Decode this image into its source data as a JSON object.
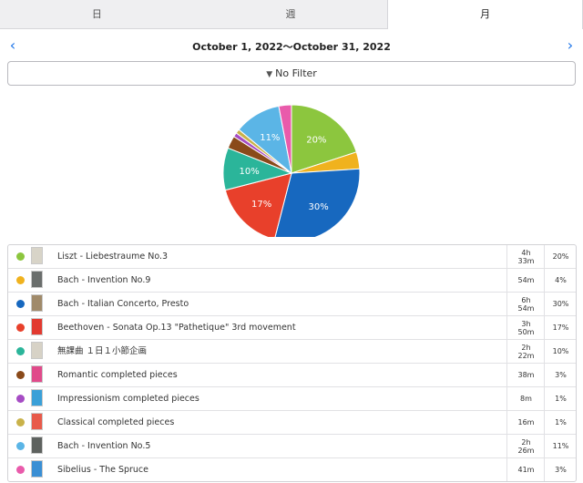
{
  "tabs": [
    {
      "label": "日",
      "active": false
    },
    {
      "label": "週",
      "active": false
    },
    {
      "label": "月",
      "active": true
    }
  ],
  "date_range": "October 1, 2022～October 31, 2022",
  "filter": {
    "label": "No Filter",
    "caret": "▼"
  },
  "nav": {
    "prev_icon": "‹",
    "next_icon": "›"
  },
  "chart_data": {
    "type": "pie",
    "start": "12 o'clock, clockwise",
    "slices": [
      {
        "name": "Liszt - Liebestraume No.3",
        "value": 20,
        "color": "#8cc63e",
        "label": "20%"
      },
      {
        "name": "Bach - Invention No.9",
        "value": 4,
        "color": "#f0b21e",
        "label": ""
      },
      {
        "name": "Bach - Italian Concerto, Presto",
        "value": 30,
        "color": "#1768bf",
        "label": "30%"
      },
      {
        "name": "Beethoven - Sonata Op.13 \"Pathetique\" 3rd movement",
        "value": 17,
        "color": "#e8402b",
        "label": "17%"
      },
      {
        "name": "無課曲 １日１小節企画",
        "value": 10,
        "color": "#2bb59a",
        "label": "10%"
      },
      {
        "name": "Romantic completed pieces",
        "value": 3,
        "color": "#8a4a1a",
        "label": ""
      },
      {
        "name": "Impressionism completed pieces",
        "value": 1,
        "color": "#a64cc4",
        "label": ""
      },
      {
        "name": "Classical completed pieces",
        "value": 1,
        "color": "#c9b24a",
        "label": ""
      },
      {
        "name": "Bach - Invention No.5",
        "value": 11,
        "color": "#5bb5e6",
        "label": "11%"
      },
      {
        "name": "Sibelius - The Spruce",
        "value": 3,
        "color": "#e95bab",
        "label": ""
      }
    ]
  },
  "rows": [
    {
      "title": "Liszt - Liebestraume No.3",
      "time": "4h\n33m",
      "pct": "20%",
      "color": "#8cc63e",
      "thumb": "#d8d4c8"
    },
    {
      "title": "Bach - Invention No.9",
      "time": "54m",
      "pct": "4%",
      "color": "#f0b21e",
      "thumb": "#6a6e6c"
    },
    {
      "title": "Bach - Italian Concerto, Presto",
      "time": "6h\n54m",
      "pct": "30%",
      "color": "#1768bf",
      "thumb": "#a08a6a"
    },
    {
      "title": "Beethoven - Sonata Op.13 \"Pathetique\" 3rd movement",
      "time": "3h\n50m",
      "pct": "17%",
      "color": "#e8402b",
      "thumb": "#e23a30"
    },
    {
      "title": "無課曲 １日１小節企画",
      "time": "2h\n22m",
      "pct": "10%",
      "color": "#2bb59a",
      "thumb": "#d7d2c6"
    },
    {
      "title": "Romantic completed pieces",
      "time": "38m",
      "pct": "3%",
      "color": "#8a4a1a",
      "thumb": "#e04a8a"
    },
    {
      "title": "Impressionism completed pieces",
      "time": "8m",
      "pct": "1%",
      "color": "#a64cc4",
      "thumb": "#3aa0d8"
    },
    {
      "title": "Classical completed pieces",
      "time": "16m",
      "pct": "1%",
      "color": "#c9b24a",
      "thumb": "#e85a4a"
    },
    {
      "title": "Bach - Invention No.5",
      "time": "2h\n26m",
      "pct": "11%",
      "color": "#5bb5e6",
      "thumb": "#5e625f"
    },
    {
      "title": "Sibelius - The Spruce",
      "time": "41m",
      "pct": "3%",
      "color": "#e95bab",
      "thumb": "#3a8fd4"
    }
  ]
}
